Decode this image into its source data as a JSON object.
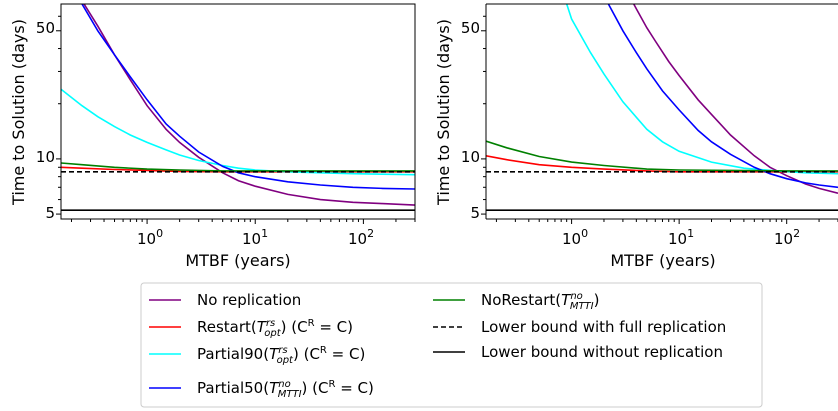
{
  "chart_data": [
    {
      "type": "line",
      "xscale": "log",
      "yscale": "log",
      "xlim": [
        0.16,
        300
      ],
      "ylim": [
        4.7,
        70
      ],
      "xlabel": "MTBF (years)",
      "ylabel": "Time to Solution (days)",
      "x_ticks": [
        1,
        10,
        100
      ],
      "x_tick_labels": [
        "10^0",
        "10^1",
        "10^2"
      ],
      "y_ticks": [
        5,
        10,
        50
      ],
      "y_tick_labels": [
        "5",
        "10",
        "50"
      ],
      "grid": false,
      "series": [
        {
          "key": "no_replication",
          "x": [
            0.16,
            0.25,
            0.35,
            0.5,
            0.7,
            1,
            1.5,
            2,
            3,
            5,
            7,
            10,
            20,
            40,
            80,
            150,
            300
          ],
          "y": [
            115,
            73,
            53,
            37,
            27,
            19.5,
            14.5,
            12.3,
            10.2,
            8.4,
            7.6,
            7.1,
            6.4,
            6.0,
            5.8,
            5.7,
            5.6
          ]
        },
        {
          "key": "restart",
          "x": [
            0.16,
            0.25,
            0.5,
            1,
            2,
            5,
            10,
            100,
            300
          ],
          "y": [
            9.0,
            8.9,
            8.75,
            8.65,
            8.55,
            8.5,
            8.5,
            8.5,
            8.5
          ]
        },
        {
          "key": "partial90",
          "x": [
            0.16,
            0.25,
            0.35,
            0.5,
            0.7,
            1,
            1.5,
            2,
            3,
            5,
            7,
            10,
            20,
            40,
            80,
            150,
            300
          ],
          "y": [
            24,
            19.5,
            17,
            15,
            13.5,
            12.3,
            11.2,
            10.5,
            9.8,
            9.2,
            8.9,
            8.7,
            8.5,
            8.4,
            8.3,
            8.25,
            8.2
          ]
        },
        {
          "key": "partial50",
          "x": [
            0.25,
            0.35,
            0.5,
            0.7,
            1,
            1.5,
            2,
            3,
            5,
            7,
            10,
            20,
            40,
            80,
            150,
            300
          ],
          "y": [
            70,
            50,
            37,
            28,
            21,
            15.5,
            13.3,
            10.9,
            9.1,
            8.4,
            8.0,
            7.5,
            7.2,
            7.0,
            6.9,
            6.85
          ]
        },
        {
          "key": "norestart",
          "x": [
            0.16,
            0.25,
            0.5,
            1,
            2,
            5,
            10,
            100,
            300
          ],
          "y": [
            9.5,
            9.3,
            9.0,
            8.8,
            8.7,
            8.6,
            8.6,
            8.6,
            8.6
          ]
        },
        {
          "key": "lower_full",
          "x": [
            0.16,
            300
          ],
          "y": [
            8.5,
            8.5
          ]
        },
        {
          "key": "lower_without",
          "x": [
            0.16,
            300
          ],
          "y": [
            5.25,
            5.25
          ]
        }
      ]
    },
    {
      "type": "line",
      "xscale": "log",
      "yscale": "log",
      "xlim": [
        0.16,
        300
      ],
      "ylim": [
        4.7,
        70
      ],
      "xlabel": "MTBF (years)",
      "ylabel": "Time to Solution (days)",
      "x_ticks": [
        1,
        10,
        100
      ],
      "x_tick_labels": [
        "10^0",
        "10^1",
        "10^2"
      ],
      "y_ticks": [
        5,
        10,
        50
      ],
      "y_tick_labels": [
        "5",
        "10",
        "50"
      ],
      "grid": false,
      "series": [
        {
          "key": "no_replication",
          "x": [
            3,
            4,
            5,
            6,
            8,
            10,
            15,
            20,
            30,
            50,
            70,
            100,
            150,
            200,
            300
          ],
          "y": [
            90,
            66,
            52,
            44,
            34,
            28.5,
            21,
            17.5,
            13.5,
            10.4,
            9.0,
            8.1,
            7.3,
            6.9,
            6.5
          ]
        },
        {
          "key": "restart",
          "x": [
            0.16,
            0.25,
            0.5,
            1,
            2,
            5,
            10,
            100,
            300
          ],
          "y": [
            10.4,
            9.9,
            9.3,
            9.0,
            8.8,
            8.6,
            8.5,
            8.5,
            8.5
          ]
        },
        {
          "key": "partial90",
          "x": [
            0.9,
            1,
            1.5,
            2,
            3,
            5,
            7,
            10,
            20,
            40,
            80,
            150,
            300
          ],
          "y": [
            70,
            58,
            38,
            29,
            20.5,
            14.5,
            12.4,
            11.0,
            9.6,
            8.9,
            8.6,
            8.4,
            8.3
          ]
        },
        {
          "key": "partial50",
          "x": [
            2.2,
            3,
            4,
            5,
            7,
            10,
            15,
            20,
            30,
            50,
            70,
            100,
            150,
            200,
            300
          ],
          "y": [
            70,
            50,
            38,
            31,
            23.5,
            18.5,
            14.3,
            12.4,
            10.6,
            9.0,
            8.3,
            7.8,
            7.4,
            7.2,
            7.0
          ]
        },
        {
          "key": "norestart",
          "x": [
            0.16,
            0.25,
            0.5,
            1,
            2,
            5,
            10,
            100,
            300
          ],
          "y": [
            12.5,
            11.5,
            10.3,
            9.6,
            9.2,
            8.8,
            8.7,
            8.6,
            8.6
          ]
        },
        {
          "key": "lower_full",
          "x": [
            0.16,
            300
          ],
          "y": [
            8.5,
            8.5
          ]
        },
        {
          "key": "lower_without",
          "x": [
            0.16,
            300
          ],
          "y": [
            5.25,
            5.25
          ]
        }
      ]
    }
  ],
  "legend": {
    "placement": "bottom-center",
    "entries": [
      {
        "key": "no_replication",
        "label": "No replication",
        "color": "#800080",
        "dash": "solid"
      },
      {
        "key": "restart",
        "label": "Restart(T_opt^rs) (C^R = C)",
        "color": "#ff0000",
        "dash": "solid"
      },
      {
        "key": "partial90",
        "label": "Partial90(T_opt^rs) (C^R = C)",
        "color": "#00ffff",
        "dash": "solid"
      },
      {
        "key": "partial50",
        "label": "Partial50(T_MTTI^no) (C^R = C)",
        "color": "#0000ff",
        "dash": "solid"
      },
      {
        "key": "norestart",
        "label": "NoRestart(T_MTTI^no)",
        "color": "#008000",
        "dash": "solid"
      },
      {
        "key": "lower_full",
        "label": "Lower bound with full replication",
        "color": "#000000",
        "dash": "dashed"
      },
      {
        "key": "lower_without",
        "label": "Lower bound without replication",
        "color": "#000000",
        "dash": "solid"
      }
    ]
  },
  "text": {
    "x_base": "10",
    "x_exp_0": "0",
    "x_exp_1": "1",
    "x_exp_2": "2",
    "y_5": "5",
    "y_10": "10",
    "y_50": "50",
    "xlabel": "MTBF (years)",
    "ylabel": "Time to Solution (days)",
    "leg_no_replication": "No replication",
    "leg_restart_pre": "Restart(",
    "leg_partial90_pre": "Partial90(",
    "leg_partial50_pre": "Partial50(",
    "leg_norestart_pre": "NoRestart(",
    "T": "T",
    "sup_rs": "rs",
    "sub_opt": "opt",
    "sup_no": "no",
    "sub_mtti": "MTTI",
    "close_paren": ")",
    "cr_pre": " (C",
    "cr_sup": "R",
    "cr_post": " = C)",
    "leg_lower_full": "Lower bound with full replication",
    "leg_lower_without": "Lower bound without replication"
  }
}
